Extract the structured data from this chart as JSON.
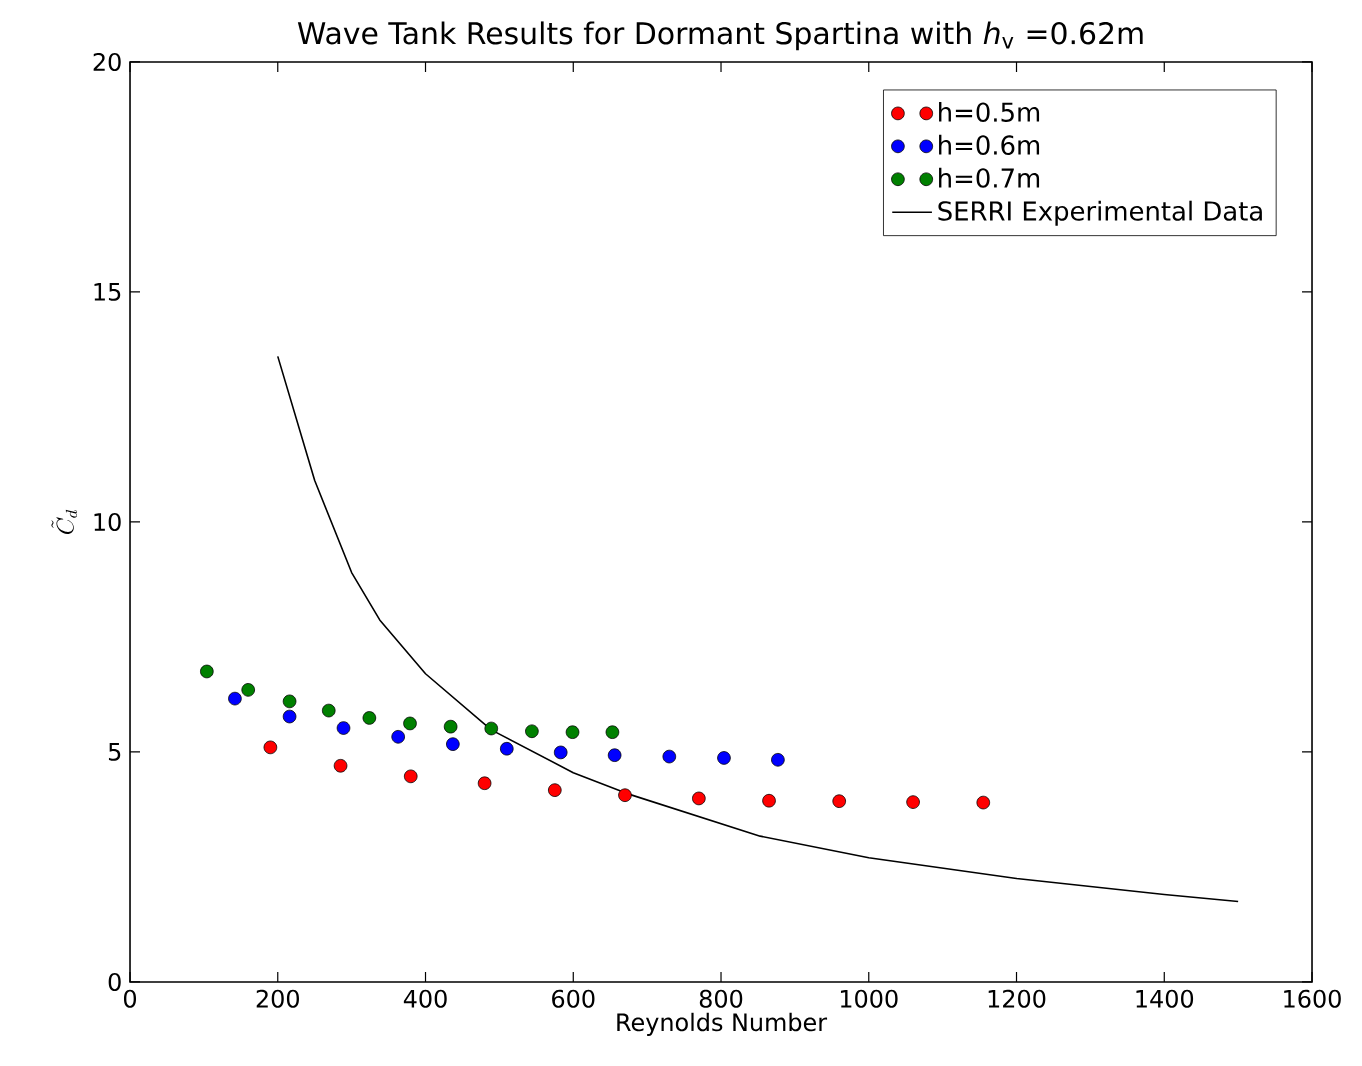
{
  "chart_data": {
    "type": "scatter",
    "title": "Wave Tank Results for Dormant Spartina with *h*$_{v}$ =0.62m",
    "xlabel": "Reynolds Number",
    "ylabel": "\\tilde{C}_d",
    "xlim": [
      0,
      1600
    ],
    "ylim": [
      0,
      20
    ],
    "xticks": [
      0,
      200,
      400,
      600,
      800,
      1000,
      1200,
      1400,
      1600
    ],
    "yticks": [
      0,
      5,
      10,
      15,
      20
    ],
    "legend": "top right",
    "series": [
      {
        "name": "h=0.5m",
        "type": "scatter",
        "marker": "circle",
        "color": "#ff0000",
        "x": [
          190,
          285,
          380,
          480,
          575,
          670,
          770,
          865,
          960,
          1060,
          1155
        ],
        "values": [
          5.1,
          4.7,
          4.47,
          4.32,
          4.17,
          4.06,
          3.99,
          3.94,
          3.93,
          3.91,
          3.9
        ]
      },
      {
        "name": "h=0.6m",
        "type": "scatter",
        "marker": "circle",
        "color": "#0000ff",
        "x": [
          142,
          216,
          289,
          363,
          437,
          510,
          583,
          656,
          730,
          804,
          877
        ],
        "values": [
          6.16,
          5.77,
          5.52,
          5.33,
          5.17,
          5.07,
          4.99,
          4.93,
          4.9,
          4.87,
          4.83
        ]
      },
      {
        "name": "h=0.7m",
        "marker": "circle",
        "color": "#008000",
        "x": [
          104,
          160,
          216,
          269,
          324,
          379,
          434,
          489,
          544,
          599,
          653
        ],
        "values": [
          6.75,
          6.35,
          6.1,
          5.9,
          5.74,
          5.62,
          5.55,
          5.51,
          5.45,
          5.43,
          5.43
        ]
      },
      {
        "name": "SERRI Experimental Data",
        "type": "line",
        "color": "#000000",
        "line_style": "solid",
        "marker": "none",
        "x": [
          200,
          250,
          300,
          338,
          400,
          489,
          600,
          672,
          853,
          1000,
          1200,
          1400,
          1500
        ],
        "values": [
          13.6,
          10.9,
          8.9,
          7.87,
          6.7,
          5.48,
          4.55,
          4.1,
          3.17,
          2.7,
          2.25,
          1.9,
          1.75
        ]
      }
    ]
  }
}
